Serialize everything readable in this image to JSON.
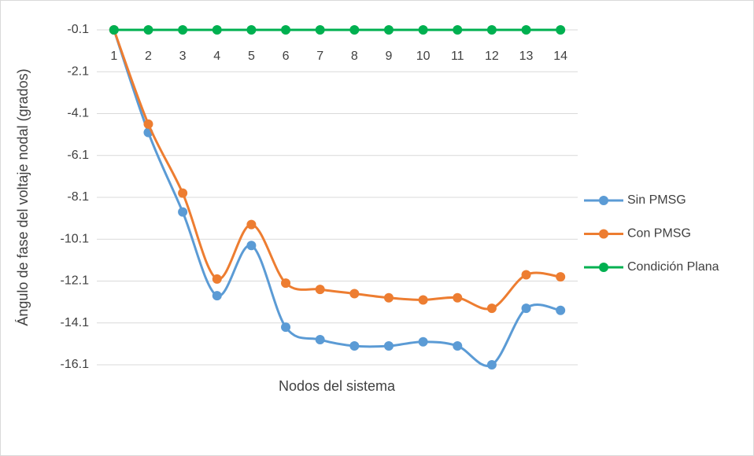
{
  "chart_data": {
    "type": "line",
    "y_label": "Ángulo de fase del voltaje nodal (grados)",
    "x_label": "Nodos del sistema",
    "categories": [
      "1",
      "2",
      "3",
      "4",
      "5",
      "6",
      "7",
      "8",
      "9",
      "10",
      "11",
      "12",
      "13",
      "14"
    ],
    "series": [
      {
        "name": "Sin PMSG",
        "color": "#5b9bd5",
        "values": [
          -0.1,
          -5.0,
          -8.8,
          -12.8,
          -10.4,
          -14.3,
          -14.9,
          -15.2,
          -15.2,
          -15.0,
          -15.2,
          -16.1,
          -13.4,
          -13.5
        ]
      },
      {
        "name": "Con PMSG",
        "color": "#ed7d31",
        "values": [
          -0.1,
          -4.6,
          -7.9,
          -12.0,
          -9.4,
          -12.2,
          -12.5,
          -12.7,
          -12.9,
          -13.0,
          -12.9,
          -13.4,
          -11.8,
          -11.9
        ]
      },
      {
        "name": "Condición Plana",
        "color": "#00b050",
        "values": [
          -0.1,
          -0.1,
          -0.1,
          -0.1,
          -0.1,
          -0.1,
          -0.1,
          -0.1,
          -0.1,
          -0.1,
          -0.1,
          -0.1,
          -0.1,
          -0.1
        ]
      }
    ],
    "ylim": [
      -16.1,
      -0.1
    ],
    "yticks": [
      -0.1,
      -2.1,
      -4.1,
      -6.1,
      -8.1,
      -10.1,
      -12.1,
      -14.1,
      -16.1
    ],
    "grid": true,
    "legend": "right",
    "smooth": true
  }
}
